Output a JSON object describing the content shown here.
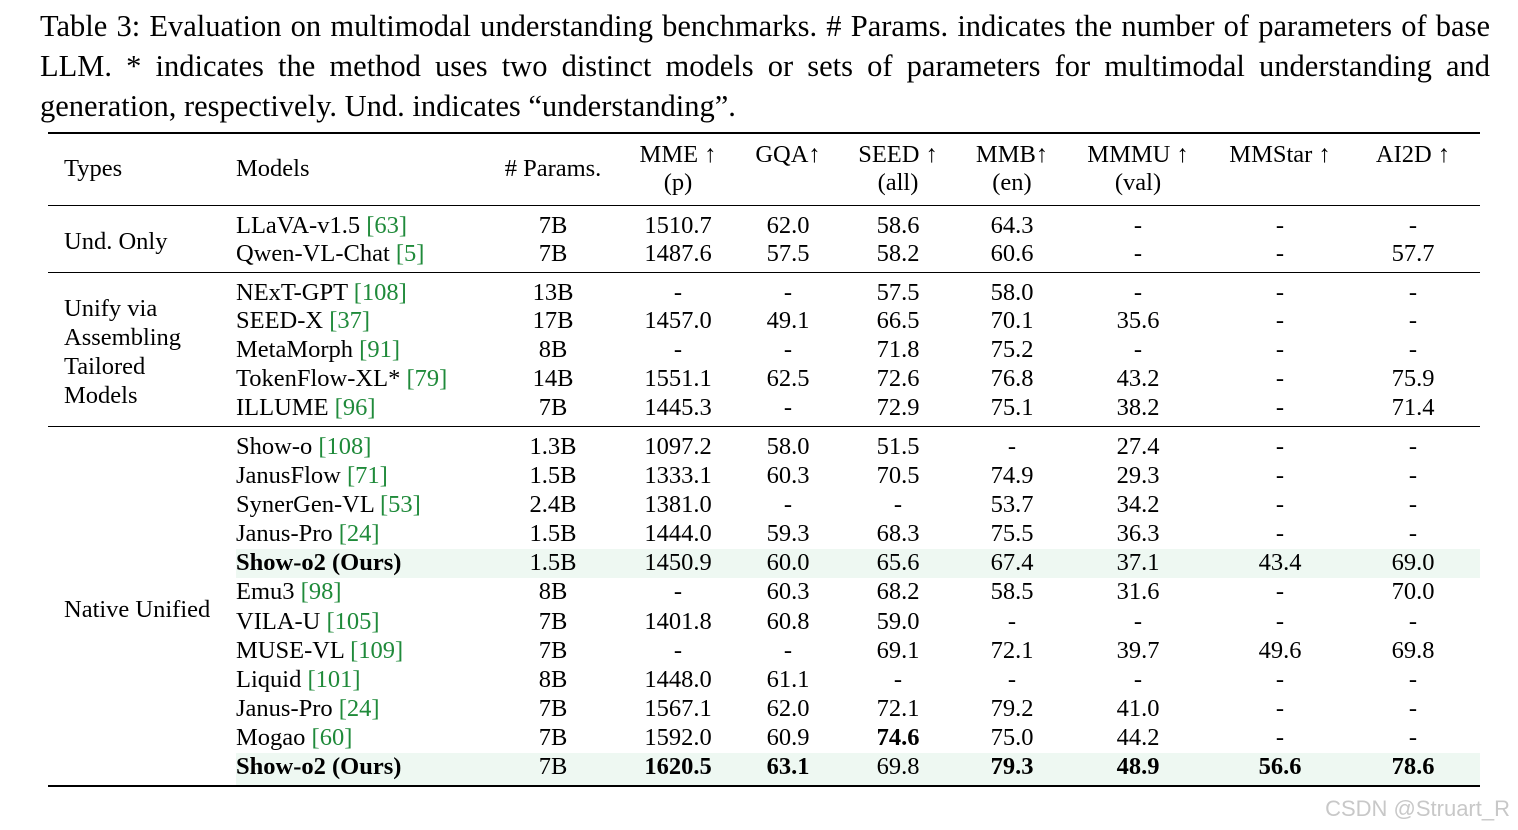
{
  "caption": "Table 3: Evaluation on multimodal understanding benchmarks. # Params. indicates the number of parameters of base LLM. * indicates the method uses two distinct models or sets of parameters for multimodal understanding and generation, respectively. Und. indicates “understanding”.",
  "headers": {
    "types": "Types",
    "models": "Models",
    "params": "# Params.",
    "mme": "MME ↑",
    "mme_sub": "(p)",
    "gqa": "GQA↑",
    "seed": "SEED ↑",
    "seed_sub": "(all)",
    "mmb": "MMB↑",
    "mmb_sub": "(en)",
    "mmmu": "MMMU ↑",
    "mmmu_sub": "(val)",
    "mmstar": "MMStar ↑",
    "ai2d": "AI2D ↑"
  },
  "groups": [
    {
      "type_lines": [
        "Und. Only"
      ],
      "rows": [
        {
          "model": "LLaVA-v1.5",
          "cite": "[63]",
          "params": "7B",
          "mme": "1510.7",
          "gqa": "62.0",
          "seed": "58.6",
          "mmb": "64.3",
          "mmmu": "-",
          "mmstar": "-",
          "ai2d": "-"
        },
        {
          "model": "Qwen-VL-Chat",
          "cite": "[5]",
          "params": "7B",
          "mme": "1487.6",
          "gqa": "57.5",
          "seed": "58.2",
          "mmb": "60.6",
          "mmmu": "-",
          "mmstar": "-",
          "ai2d": "57.7"
        }
      ]
    },
    {
      "type_lines": [
        "Unify via",
        "Assembling",
        "Tailored",
        "Models"
      ],
      "rows": [
        {
          "model": "NExT-GPT",
          "cite": "[108]",
          "params": "13B",
          "mme": "-",
          "gqa": "-",
          "seed": "57.5",
          "mmb": "58.0",
          "mmmu": "-",
          "mmstar": "-",
          "ai2d": "-"
        },
        {
          "model": "SEED-X",
          "cite": "[37]",
          "params": "17B",
          "mme": "1457.0",
          "gqa": "49.1",
          "seed": "66.5",
          "mmb": "70.1",
          "mmmu": "35.6",
          "mmstar": "-",
          "ai2d": "-"
        },
        {
          "model": "MetaMorph",
          "cite": "[91]",
          "params": "8B",
          "mme": "-",
          "gqa": "-",
          "seed": "71.8",
          "mmb": "75.2",
          "mmmu": "-",
          "mmstar": "-",
          "ai2d": "-"
        },
        {
          "model": "TokenFlow-XL*",
          "cite": "[79]",
          "params": "14B",
          "mme": "1551.1",
          "gqa": "62.5",
          "seed": "72.6",
          "mmb": "76.8",
          "mmmu": "43.2",
          "mmstar": "-",
          "ai2d": "75.9"
        },
        {
          "model": "ILLUME",
          "cite": "[96]",
          "params": "7B",
          "mme": "1445.3",
          "gqa": "-",
          "seed": "72.9",
          "mmb": "75.1",
          "mmmu": "38.2",
          "mmstar": "-",
          "ai2d": "71.4"
        }
      ]
    },
    {
      "type_lines": [
        "Native Unified"
      ],
      "rows": [
        {
          "model": "Show-o",
          "cite": "[108]",
          "params": "1.3B",
          "mme": "1097.2",
          "gqa": "58.0",
          "seed": "51.5",
          "mmb": "-",
          "mmmu": "27.4",
          "mmstar": "-",
          "ai2d": "-"
        },
        {
          "model": "JanusFlow",
          "cite": "[71]",
          "params": "1.5B",
          "mme": "1333.1",
          "gqa": "60.3",
          "seed": "70.5",
          "mmb": "74.9",
          "mmmu": "29.3",
          "mmstar": "-",
          "ai2d": "-"
        },
        {
          "model": "SynerGen-VL",
          "cite": "[53]",
          "params": "2.4B",
          "mme": "1381.0",
          "gqa": "-",
          "seed": "-",
          "mmb": "53.7",
          "mmmu": "34.2",
          "mmstar": "-",
          "ai2d": "-"
        },
        {
          "model": "Janus-Pro",
          "cite": "[24]",
          "params": "1.5B",
          "mme": "1444.0",
          "gqa": "59.3",
          "seed": "68.3",
          "mmb": "75.5",
          "mmmu": "36.3",
          "mmstar": "-",
          "ai2d": "-"
        },
        {
          "model": "Show-o2 (Ours)",
          "cite": "",
          "params": "1.5B",
          "mme": "1450.9",
          "gqa": "60.0",
          "seed": "65.6",
          "mmb": "67.4",
          "mmmu": "37.1",
          "mmstar": "43.4",
          "ai2d": "69.0",
          "highlight": true,
          "bold_model": true
        },
        {
          "model": "Emu3",
          "cite": "[98]",
          "params": "8B",
          "mme": "-",
          "gqa": "60.3",
          "seed": "68.2",
          "mmb": "58.5",
          "mmmu": "31.6",
          "mmstar": "-",
          "ai2d": "70.0"
        },
        {
          "model": "VILA-U",
          "cite": "[105]",
          "params": "7B",
          "mme": "1401.8",
          "gqa": "60.8",
          "seed": "59.0",
          "mmb": "-",
          "mmmu": "-",
          "mmstar": "-",
          "ai2d": "-"
        },
        {
          "model": "MUSE-VL",
          "cite": "[109]",
          "params": "7B",
          "mme": "-",
          "gqa": "-",
          "seed": "69.1",
          "mmb": "72.1",
          "mmmu": "39.7",
          "mmstar": "49.6",
          "ai2d": "69.8"
        },
        {
          "model": "Liquid",
          "cite": "[101]",
          "params": "8B",
          "mme": "1448.0",
          "gqa": "61.1",
          "seed": "-",
          "mmb": "-",
          "mmmu": "-",
          "mmstar": "-",
          "ai2d": "-"
        },
        {
          "model": "Janus-Pro",
          "cite": "[24]",
          "params": "7B",
          "mme": "1567.1",
          "gqa": "62.0",
          "seed": "72.1",
          "mmb": "79.2",
          "mmmu": "41.0",
          "mmstar": "-",
          "ai2d": "-"
        },
        {
          "model": "Mogao",
          "cite": "[60]",
          "params": "7B",
          "mme": "1592.0",
          "gqa": "60.9",
          "seed": "74.6",
          "mmb": "75.0",
          "mmmu": "44.2",
          "mmstar": "-",
          "ai2d": "-",
          "bold_cells": [
            "seed"
          ]
        },
        {
          "model": "Show-o2 (Ours)",
          "cite": "",
          "params": "7B",
          "mme": "1620.5",
          "gqa": "63.1",
          "seed": "69.8",
          "mmb": "79.3",
          "mmmu": "48.9",
          "mmstar": "56.6",
          "ai2d": "78.6",
          "highlight": true,
          "bold_model": true,
          "bold_cells": [
            "mme",
            "gqa",
            "mmb",
            "mmmu",
            "mmstar",
            "ai2d"
          ]
        }
      ]
    }
  ],
  "watermark": "CSDN @Struart_R"
}
